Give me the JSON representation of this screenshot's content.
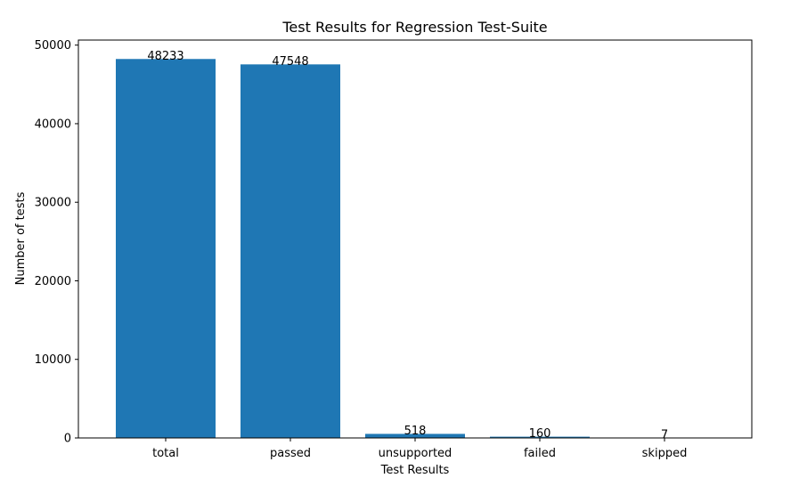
{
  "chart_data": {
    "type": "bar",
    "title": "Test Results for Regression Test-Suite",
    "xlabel": "Test Results",
    "ylabel": "Number of tests",
    "categories": [
      "total",
      "passed",
      "unsupported",
      "failed",
      "skipped"
    ],
    "values": [
      48233,
      47548,
      518,
      160,
      7
    ],
    "data_labels": [
      "48233",
      "47548",
      "518",
      "160",
      "7"
    ],
    "ylim": [
      0,
      50644
    ],
    "yticks": [
      0,
      10000,
      20000,
      30000,
      40000,
      50000
    ],
    "ytick_labels": [
      "0",
      "10000",
      "20000",
      "30000",
      "40000",
      "50000"
    ],
    "bar_color": "#1f77b4",
    "grid": false,
    "legend": "none"
  }
}
